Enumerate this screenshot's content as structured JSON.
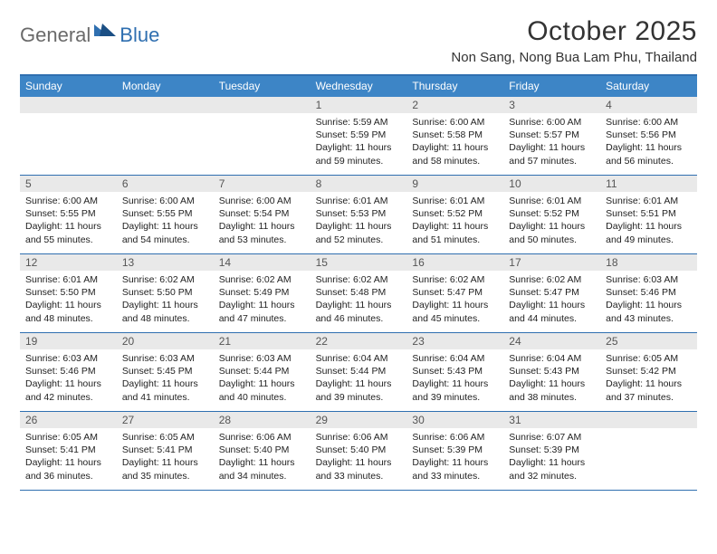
{
  "brand": {
    "general": "General",
    "blue": "Blue"
  },
  "title": "October 2025",
  "location": "Non Sang, Nong Bua Lam Phu, Thailand",
  "colors": {
    "accent": "#2f6fb0",
    "header_bg": "#3d85c6",
    "band_bg": "#e9e9e9",
    "text": "#333333",
    "body_text": "#222222",
    "muted": "#6a6a6a"
  },
  "day_names": [
    "Sunday",
    "Monday",
    "Tuesday",
    "Wednesday",
    "Thursday",
    "Friday",
    "Saturday"
  ],
  "weeks": [
    [
      null,
      null,
      null,
      {
        "n": "1",
        "sr": "5:59 AM",
        "ss": "5:59 PM",
        "dl": "11 hours and 59 minutes."
      },
      {
        "n": "2",
        "sr": "6:00 AM",
        "ss": "5:58 PM",
        "dl": "11 hours and 58 minutes."
      },
      {
        "n": "3",
        "sr": "6:00 AM",
        "ss": "5:57 PM",
        "dl": "11 hours and 57 minutes."
      },
      {
        "n": "4",
        "sr": "6:00 AM",
        "ss": "5:56 PM",
        "dl": "11 hours and 56 minutes."
      }
    ],
    [
      {
        "n": "5",
        "sr": "6:00 AM",
        "ss": "5:55 PM",
        "dl": "11 hours and 55 minutes."
      },
      {
        "n": "6",
        "sr": "6:00 AM",
        "ss": "5:55 PM",
        "dl": "11 hours and 54 minutes."
      },
      {
        "n": "7",
        "sr": "6:00 AM",
        "ss": "5:54 PM",
        "dl": "11 hours and 53 minutes."
      },
      {
        "n": "8",
        "sr": "6:01 AM",
        "ss": "5:53 PM",
        "dl": "11 hours and 52 minutes."
      },
      {
        "n": "9",
        "sr": "6:01 AM",
        "ss": "5:52 PM",
        "dl": "11 hours and 51 minutes."
      },
      {
        "n": "10",
        "sr": "6:01 AM",
        "ss": "5:52 PM",
        "dl": "11 hours and 50 minutes."
      },
      {
        "n": "11",
        "sr": "6:01 AM",
        "ss": "5:51 PM",
        "dl": "11 hours and 49 minutes."
      }
    ],
    [
      {
        "n": "12",
        "sr": "6:01 AM",
        "ss": "5:50 PM",
        "dl": "11 hours and 48 minutes."
      },
      {
        "n": "13",
        "sr": "6:02 AM",
        "ss": "5:50 PM",
        "dl": "11 hours and 48 minutes."
      },
      {
        "n": "14",
        "sr": "6:02 AM",
        "ss": "5:49 PM",
        "dl": "11 hours and 47 minutes."
      },
      {
        "n": "15",
        "sr": "6:02 AM",
        "ss": "5:48 PM",
        "dl": "11 hours and 46 minutes."
      },
      {
        "n": "16",
        "sr": "6:02 AM",
        "ss": "5:47 PM",
        "dl": "11 hours and 45 minutes."
      },
      {
        "n": "17",
        "sr": "6:02 AM",
        "ss": "5:47 PM",
        "dl": "11 hours and 44 minutes."
      },
      {
        "n": "18",
        "sr": "6:03 AM",
        "ss": "5:46 PM",
        "dl": "11 hours and 43 minutes."
      }
    ],
    [
      {
        "n": "19",
        "sr": "6:03 AM",
        "ss": "5:46 PM",
        "dl": "11 hours and 42 minutes."
      },
      {
        "n": "20",
        "sr": "6:03 AM",
        "ss": "5:45 PM",
        "dl": "11 hours and 41 minutes."
      },
      {
        "n": "21",
        "sr": "6:03 AM",
        "ss": "5:44 PM",
        "dl": "11 hours and 40 minutes."
      },
      {
        "n": "22",
        "sr": "6:04 AM",
        "ss": "5:44 PM",
        "dl": "11 hours and 39 minutes."
      },
      {
        "n": "23",
        "sr": "6:04 AM",
        "ss": "5:43 PM",
        "dl": "11 hours and 39 minutes."
      },
      {
        "n": "24",
        "sr": "6:04 AM",
        "ss": "5:43 PM",
        "dl": "11 hours and 38 minutes."
      },
      {
        "n": "25",
        "sr": "6:05 AM",
        "ss": "5:42 PM",
        "dl": "11 hours and 37 minutes."
      }
    ],
    [
      {
        "n": "26",
        "sr": "6:05 AM",
        "ss": "5:41 PM",
        "dl": "11 hours and 36 minutes."
      },
      {
        "n": "27",
        "sr": "6:05 AM",
        "ss": "5:41 PM",
        "dl": "11 hours and 35 minutes."
      },
      {
        "n": "28",
        "sr": "6:06 AM",
        "ss": "5:40 PM",
        "dl": "11 hours and 34 minutes."
      },
      {
        "n": "29",
        "sr": "6:06 AM",
        "ss": "5:40 PM",
        "dl": "11 hours and 33 minutes."
      },
      {
        "n": "30",
        "sr": "6:06 AM",
        "ss": "5:39 PM",
        "dl": "11 hours and 33 minutes."
      },
      {
        "n": "31",
        "sr": "6:07 AM",
        "ss": "5:39 PM",
        "dl": "11 hours and 32 minutes."
      },
      null
    ]
  ],
  "labels": {
    "sunrise": "Sunrise:",
    "sunset": "Sunset:",
    "daylight": "Daylight:"
  }
}
